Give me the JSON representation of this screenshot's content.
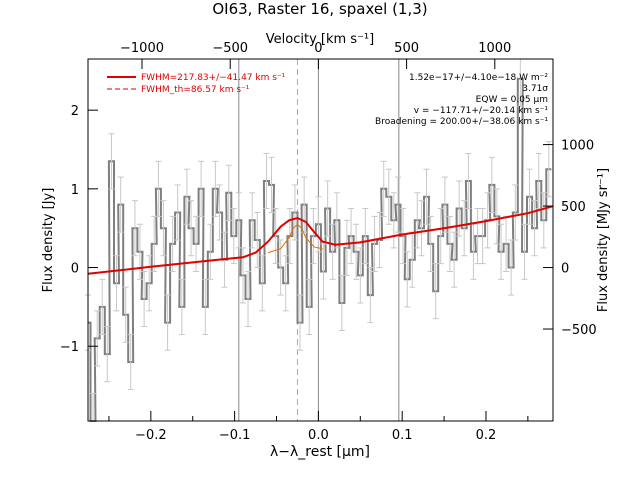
{
  "title": "OI63, Raster 16, spaxel (1,3)",
  "legend": [
    {
      "text": "FWHM=217.83+/−41.47 km s⁻¹",
      "style": "solid",
      "color": "#e00000"
    },
    {
      "text": "FWHM_th=86.57 km s⁻¹",
      "style": "dashed",
      "color": "#e00000"
    }
  ],
  "annotations": [
    "1.52e−17+/−4.10e−18 W m⁻²",
    "3.71σ",
    "EQW = 0.05 μm",
    "v = −117.71+/−20.14 km s⁻¹",
    "Broadening = 200.00+/−38.06 km s⁻¹"
  ],
  "chart_data": {
    "type": "line",
    "title": "OI63, Raster 16, spaxel (1,3)",
    "xlabel": "λ−λ_rest [μm]",
    "ylabel": "Flux density [Jy]",
    "top_xlabel": "Velocity [km s⁻¹]",
    "right_ylabel": "Flux density [MJy sr⁻¹]",
    "xlim": [
      -0.275,
      0.28
    ],
    "ylim": [
      -1.95,
      2.65
    ],
    "xticks": [
      -0.2,
      -0.1,
      0.0,
      0.1,
      0.2
    ],
    "xtick_labels": [
      "−0.2",
      "−0.1",
      "0.0",
      "0.1",
      "0.2"
    ],
    "yticks": [
      -1,
      0,
      1,
      2
    ],
    "ytick_labels": [
      "−1",
      "0",
      "1",
      "2"
    ],
    "top_ticks": [
      -1000,
      -500,
      0,
      500,
      1000
    ],
    "top_tick_labels": [
      "−1000",
      "−500",
      "0",
      "500",
      "1000"
    ],
    "velocity_per_micron": 4750,
    "right_ticks": [
      -500,
      0,
      500,
      1000
    ],
    "right_tick_labels": [
      "−500",
      "0",
      "500",
      "1000"
    ],
    "right_scale_per_jy": 640,
    "vertical_lines": [
      -0.095,
      0.0,
      0.096
    ],
    "line_center": -0.025,
    "series": [
      {
        "style": "step-errorbar",
        "color": "#808080",
        "x": [
          -0.275,
          -0.269,
          -0.264,
          -0.258,
          -0.252,
          -0.247,
          -0.241,
          -0.236,
          -0.23,
          -0.224,
          -0.219,
          -0.213,
          -0.208,
          -0.202,
          -0.196,
          -0.191,
          -0.185,
          -0.18,
          -0.174,
          -0.168,
          -0.163,
          -0.157,
          -0.152,
          -0.146,
          -0.14,
          -0.135,
          -0.129,
          -0.123,
          -0.118,
          -0.112,
          -0.107,
          -0.101,
          -0.095,
          -0.09,
          -0.084,
          -0.079,
          -0.073,
          -0.067,
          -0.062,
          -0.056,
          -0.051,
          -0.045,
          -0.039,
          -0.034,
          -0.028,
          -0.022,
          -0.017,
          -0.011,
          -0.006,
          0.0,
          0.006,
          0.011,
          0.017,
          0.022,
          0.028,
          0.034,
          0.039,
          0.045,
          0.05,
          0.056,
          0.062,
          0.067,
          0.073,
          0.078,
          0.084,
          0.09,
          0.095,
          0.101,
          0.106,
          0.112,
          0.118,
          0.123,
          0.129,
          0.134,
          0.14,
          0.146,
          0.151,
          0.157,
          0.162,
          0.168,
          0.174,
          0.179,
          0.185,
          0.19,
          0.196,
          0.202,
          0.207,
          0.213,
          0.218,
          0.224,
          0.23,
          0.235,
          0.241,
          0.246,
          0.252,
          0.258,
          0.263,
          0.269,
          0.275
        ],
        "values": [
          -0.7,
          -1.95,
          -0.9,
          -0.5,
          -1.1,
          1.35,
          -0.2,
          0.8,
          -0.6,
          -1.2,
          0.5,
          0.2,
          -0.4,
          -0.2,
          0.3,
          1.0,
          0.5,
          -0.7,
          0.3,
          0.7,
          -0.5,
          0.9,
          0.5,
          0.3,
          1.0,
          -0.5,
          0.2,
          1.0,
          0.7,
          0.1,
          0.95,
          0.4,
          0.6,
          -0.1,
          -0.4,
          0.6,
          0.35,
          -0.2,
          1.1,
          1.05,
          0.4,
          0.0,
          -0.2,
          0.4,
          0.7,
          -0.7,
          0.8,
          -0.5,
          0.4,
          0.55,
          -0.05,
          0.75,
          0.2,
          0.6,
          -0.45,
          0.25,
          0.4,
          0.2,
          -0.1,
          0.4,
          -0.35,
          0.3,
          0.35,
          1.0,
          0.9,
          0.6,
          0.8,
          0.4,
          -0.15,
          0.1,
          0.6,
          0.5,
          0.9,
          0.3,
          -0.3,
          0.4,
          0.8,
          0.3,
          0.1,
          0.75,
          0.5,
          1.1,
          0.2,
          0.4,
          0.4,
          0.6,
          1.05,
          0.65,
          0.2,
          0.3,
          0.0,
          0.7,
          2.4,
          0.2,
          0.9,
          0.5,
          1.1,
          0.6,
          1.25
        ],
        "errors": [
          0.35,
          0.35,
          0.35,
          0.35,
          0.35,
          0.35,
          0.35,
          0.35,
          0.35,
          0.35,
          0.35,
          0.35,
          0.35,
          0.35,
          0.35,
          0.35,
          0.35,
          0.35,
          0.35,
          0.35,
          0.35,
          0.35,
          0.35,
          0.35,
          0.35,
          0.35,
          0.35,
          0.35,
          0.35,
          0.35,
          0.35,
          0.35,
          0.35,
          0.35,
          0.35,
          0.35,
          0.35,
          0.35,
          0.35,
          0.35,
          0.35,
          0.35,
          0.35,
          0.35,
          0.35,
          0.35,
          0.35,
          0.35,
          0.35,
          0.35,
          0.35,
          0.35,
          0.35,
          0.35,
          0.35,
          0.35,
          0.35,
          0.35,
          0.35,
          0.35,
          0.35,
          0.35,
          0.35,
          0.35,
          0.35,
          0.35,
          0.35,
          0.35,
          0.35,
          0.35,
          0.35,
          0.35,
          0.35,
          0.35,
          0.35,
          0.35,
          0.35,
          0.35,
          0.35,
          0.35,
          0.35,
          0.35,
          0.35,
          0.35,
          0.35,
          0.35,
          0.35,
          0.35,
          0.35,
          0.35,
          0.35,
          0.35,
          0.35,
          0.35,
          0.35,
          0.35,
          0.35,
          0.35,
          0.35
        ]
      },
      {
        "name": "FWHM=217.83+/−41.47 km s⁻¹",
        "style": "line",
        "color": "#e00000",
        "x": [
          -0.275,
          -0.2,
          -0.12,
          -0.09,
          -0.075,
          -0.06,
          -0.045,
          -0.035,
          -0.025,
          -0.015,
          -0.005,
          0.005,
          0.02,
          0.05,
          0.1,
          0.15,
          0.2,
          0.25,
          0.28
        ],
        "values": [
          -0.08,
          0.01,
          0.1,
          0.13,
          0.19,
          0.33,
          0.52,
          0.6,
          0.63,
          0.58,
          0.45,
          0.33,
          0.29,
          0.32,
          0.42,
          0.5,
          0.59,
          0.69,
          0.78
        ]
      },
      {
        "name": "FWHM_th=86.57 km s⁻¹",
        "style": "line",
        "color": "#e07000",
        "x": [
          -0.06,
          -0.045,
          -0.035,
          -0.03,
          -0.025,
          -0.02,
          -0.015,
          -0.005,
          0.005
        ],
        "values": [
          0.19,
          0.24,
          0.38,
          0.5,
          0.55,
          0.5,
          0.38,
          0.26,
          0.24
        ]
      }
    ]
  }
}
